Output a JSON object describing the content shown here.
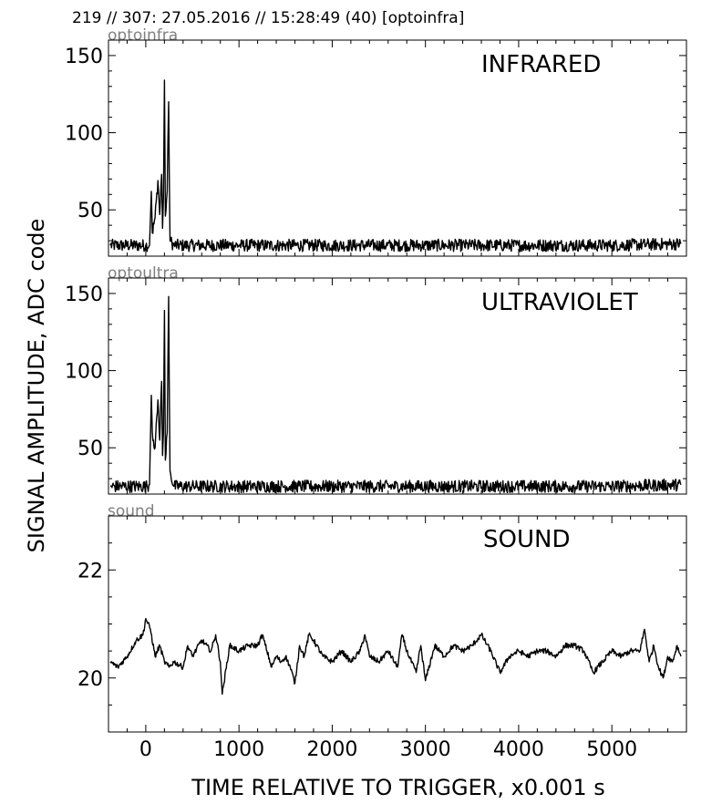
{
  "header": "219 // 307:   27.05.2016 // 15:28:49 (40)  [optoinfra]",
  "xlabel": "TIME RELATIVE TO TRIGGER,   x0.001 s",
  "ylabel": "SIGNAL AMPLITUDE,  ADC code",
  "chart_data": [
    {
      "type": "line",
      "source_label": "optoinfra",
      "title": "INFRARED",
      "xlim": [
        -400,
        5800
      ],
      "ylim": [
        20,
        160
      ],
      "xticks": [
        0,
        1000,
        2000,
        3000,
        4000,
        5000
      ],
      "yticks": [
        50,
        100,
        150
      ],
      "series": [
        {
          "baseline": 27,
          "noise": 4,
          "x": [
            -380,
            0,
            40,
            50,
            60,
            70,
            100,
            130,
            150,
            170,
            180,
            190,
            200,
            210,
            230,
            245,
            260,
            300,
            1000,
            2000,
            3000,
            4000,
            5000,
            5740
          ],
          "y": [
            27,
            27,
            27,
            44,
            62,
            35,
            45,
            69,
            47,
            73,
            38,
            58,
            134,
            46,
            62,
            120,
            30,
            27,
            27,
            27,
            27,
            27,
            27,
            28
          ]
        }
      ]
    },
    {
      "type": "line",
      "source_label": "optoultra",
      "title": "ULTRAVIOLET",
      "xlim": [
        -400,
        5800
      ],
      "ylim": [
        20,
        160
      ],
      "xticks": [
        0,
        1000,
        2000,
        3000,
        4000,
        5000
      ],
      "yticks": [
        50,
        100,
        150
      ],
      "series": [
        {
          "baseline": 25,
          "noise": 4,
          "x": [
            -380,
            0,
            40,
            50,
            60,
            70,
            100,
            130,
            150,
            170,
            180,
            190,
            200,
            210,
            230,
            245,
            260,
            300,
            1000,
            2000,
            3000,
            4000,
            5000,
            5740
          ],
          "y": [
            25,
            25,
            26,
            55,
            84,
            60,
            50,
            81,
            55,
            93,
            45,
            60,
            139,
            42,
            60,
            148,
            35,
            25,
            25,
            25,
            25,
            25,
            25,
            26
          ]
        }
      ]
    },
    {
      "type": "line",
      "source_label": "sound",
      "title": "SOUND",
      "xlim": [
        -400,
        5800
      ],
      "ylim": [
        19,
        23
      ],
      "xticks": [
        0,
        1000,
        2000,
        3000,
        4000,
        5000
      ],
      "yticks": [
        20,
        22
      ],
      "series": [
        {
          "noise": 0.05,
          "x": [
            -380,
            -300,
            -200,
            -100,
            -30,
            0,
            50,
            100,
            150,
            200,
            250,
            300,
            400,
            450,
            500,
            600,
            700,
            750,
            800,
            820,
            900,
            1000,
            1100,
            1200,
            1250,
            1300,
            1350,
            1400,
            1450,
            1500,
            1550,
            1600,
            1650,
            1700,
            1750,
            1800,
            1900,
            2000,
            2100,
            2200,
            2300,
            2350,
            2400,
            2500,
            2600,
            2700,
            2750,
            2800,
            2900,
            2950,
            3000,
            3100,
            3200,
            3300,
            3400,
            3500,
            3600,
            3700,
            3800,
            3900,
            4000,
            4100,
            4200,
            4300,
            4400,
            4500,
            4600,
            4700,
            4800,
            4900,
            5000,
            5100,
            5200,
            5300,
            5350,
            5400,
            5450,
            5500,
            5550,
            5600,
            5650,
            5700,
            5740
          ],
          "y": [
            20.3,
            20.2,
            20.4,
            20.7,
            20.8,
            21.1,
            20.9,
            20.4,
            20.6,
            20.3,
            20.2,
            20.3,
            20.2,
            20.6,
            20.4,
            20.7,
            20.5,
            20.8,
            20.3,
            19.7,
            20.6,
            20.5,
            20.6,
            20.6,
            20.8,
            20.5,
            20.2,
            20.4,
            20.3,
            20.4,
            20.2,
            19.9,
            20.6,
            20.4,
            20.8,
            20.7,
            20.4,
            20.3,
            20.5,
            20.3,
            20.5,
            20.8,
            20.4,
            20.3,
            20.5,
            20.2,
            20.8,
            20.5,
            20.1,
            20.6,
            19.95,
            20.6,
            20.4,
            20.6,
            20.5,
            20.6,
            20.8,
            20.5,
            20.1,
            20.4,
            20.5,
            20.4,
            20.5,
            20.5,
            20.4,
            20.6,
            20.6,
            20.5,
            20.1,
            20.3,
            20.5,
            20.4,
            20.5,
            20.5,
            20.9,
            20.3,
            20.6,
            20.2,
            20.0,
            20.4,
            20.3,
            20.6,
            20.4
          ]
        }
      ]
    }
  ]
}
